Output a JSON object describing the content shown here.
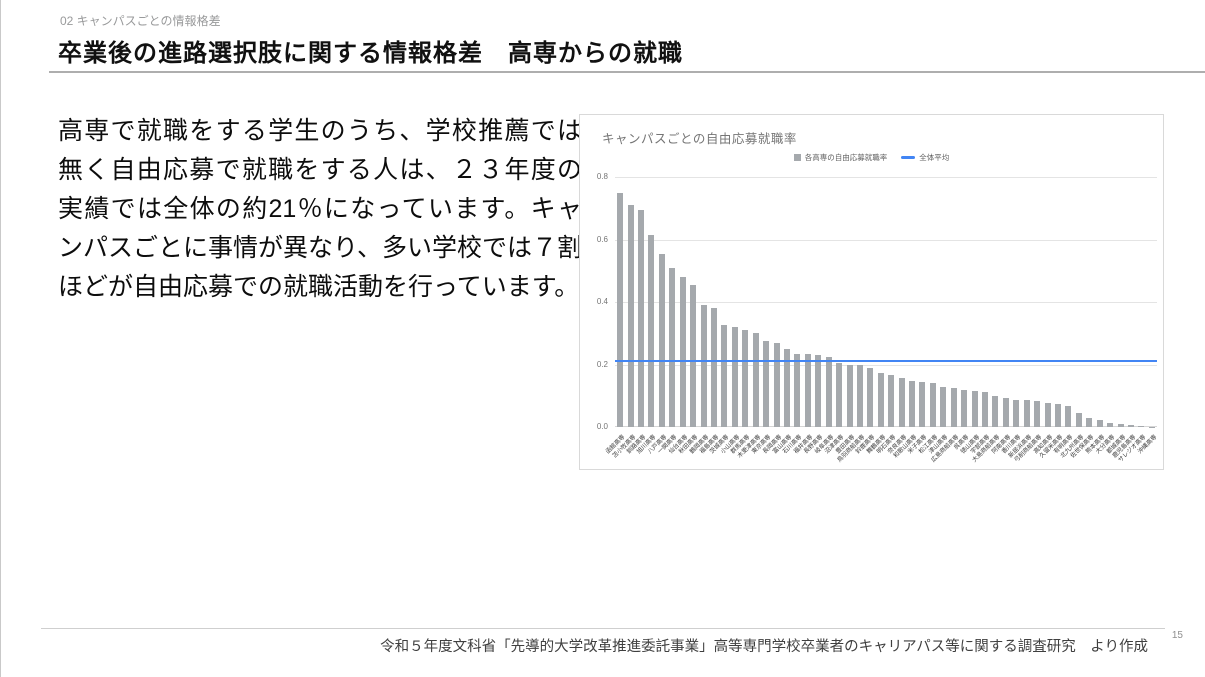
{
  "header": {
    "section_label": "02 キャンパスごとの情報格差",
    "title": "卒業後の進路選択肢に関する情報格差　高専からの就職"
  },
  "body": {
    "paragraph": "高専で就職をする学生のうち、学校推薦では無く自由応募で就職をする人は、２３年度の実績では全体の約21％になっています。キャンパスごとに事情が異なり、多い学校では７割ほどが自由応募での就職活動を行っています。"
  },
  "chart_data": {
    "type": "bar",
    "title": "キャンパスごとの自由応募就職率",
    "legend": [
      {
        "label": "各高専の自由応募就職率",
        "swatch": "square",
        "color": "#a5a9ad"
      },
      {
        "label": "全体平均",
        "swatch": "line",
        "color": "#4285f4"
      }
    ],
    "ylim": [
      0,
      0.8
    ],
    "yticks": [
      0,
      0.2,
      0.4,
      0.6,
      0.8
    ],
    "grid": true,
    "legend_position": "top-center",
    "average_line": 0.21,
    "bar_color": "#a5a9ad",
    "line_color": "#4285f4",
    "categories": [
      "函館高専",
      "苫小牧高専",
      "釧路高専",
      "旭川高専",
      "八戸高専",
      "一関高専",
      "仙台高専",
      "秋田高専",
      "鶴岡高専",
      "福島高専",
      "茨城高専",
      "小山高専",
      "群馬高専",
      "木更津高専",
      "東京高専",
      "長岡高専",
      "富山高専",
      "石川高専",
      "福井高専",
      "長野高専",
      "岐阜高専",
      "沼津高専",
      "豊田高専",
      "鳥羽商船高専",
      "鈴鹿高専",
      "舞鶴高専",
      "明石高専",
      "奈良高専",
      "和歌山高専",
      "米子高専",
      "松江高専",
      "津山高専",
      "広島商船高専",
      "呉高専",
      "徳山高専",
      "宇部高専",
      "大島商船高専",
      "阿南高専",
      "香川高専",
      "新居浜高専",
      "弓削商船高専",
      "高知高専",
      "久留米高専",
      "有明高専",
      "北九州高専",
      "佐世保高専",
      "熊本高専",
      "大分高専",
      "都城高専",
      "鹿児島高専",
      "サレジオ高専",
      "沖縄高専"
    ],
    "values": [
      0.75,
      0.71,
      0.695,
      0.615,
      0.555,
      0.51,
      0.48,
      0.455,
      0.39,
      0.38,
      0.325,
      0.32,
      0.31,
      0.3,
      0.275,
      0.27,
      0.25,
      0.235,
      0.233,
      0.23,
      0.225,
      0.205,
      0.2,
      0.198,
      0.19,
      0.172,
      0.165,
      0.158,
      0.148,
      0.145,
      0.14,
      0.128,
      0.126,
      0.118,
      0.115,
      0.113,
      0.1,
      0.092,
      0.088,
      0.085,
      0.082,
      0.078,
      0.073,
      0.068,
      0.045,
      0.028,
      0.022,
      0.014,
      0.01,
      0.006,
      0.003,
      0.001
    ]
  },
  "footer": {
    "source": "令和５年度文科省「先導的大学改革推進委託事業」高等専門学校卒業者のキャリアパス等に関する調査研究　より作成",
    "page_number": "15"
  }
}
